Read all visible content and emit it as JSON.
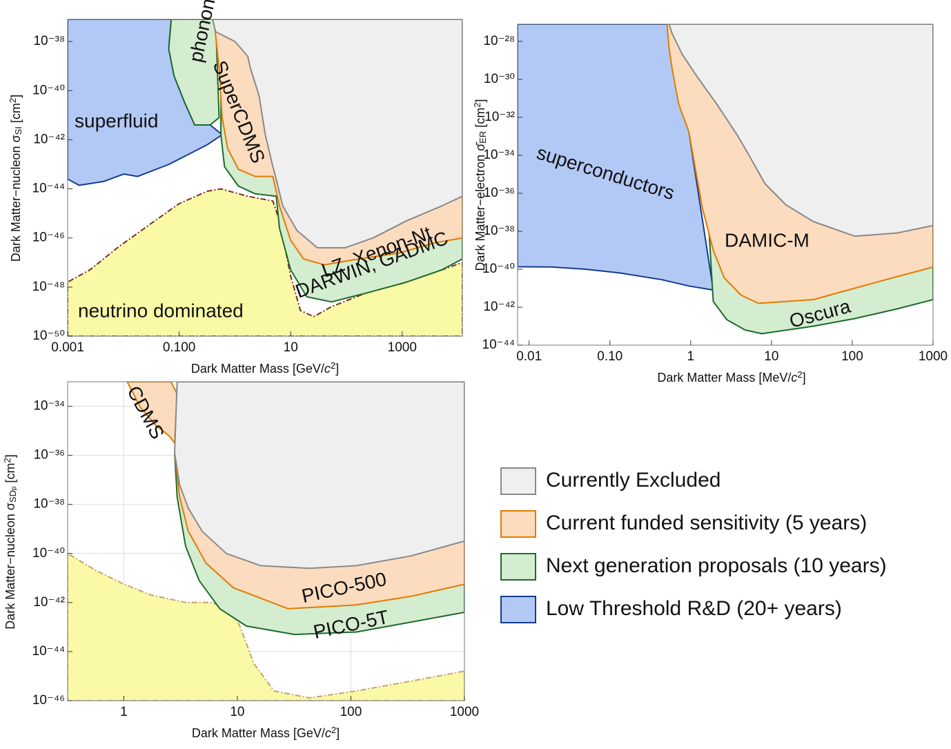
{
  "chart_data": [
    {
      "type": "region",
      "xlabel": [
        "Dark Matter Mass [GeV/",
        "c",
        "2",
        "]"
      ],
      "ylabel": [
        "Dark Matter−nucleon σ",
        "SI",
        " [cm",
        "2",
        "]"
      ],
      "log_x": true,
      "log_y": true,
      "grid": false,
      "xlim": [
        0.001,
        12000
      ],
      "ylim": [
        1e-50,
        8e-38
      ],
      "xticks": [
        0.001,
        {
          "value": 0.1,
          "label": "0.100"
        },
        10,
        1000
      ],
      "yticks": [
        {
          "value": 1e-38,
          "label": "10⁻³⁸"
        },
        {
          "value": 1e-40,
          "label": "10⁻⁴⁰"
        },
        {
          "value": 1e-42,
          "label": "10⁻⁴²"
        },
        {
          "value": 1e-44,
          "label": "10⁻⁴⁴"
        },
        {
          "value": 1e-46,
          "label": "10⁻⁴⁶"
        },
        {
          "value": 1e-48,
          "label": "10⁻⁴⁸"
        },
        {
          "value": 1e-50,
          "label": "10⁻⁵⁰"
        }
      ],
      "annotations": [
        "superfluid",
        "phonons",
        "SuperCDMS",
        "LZ, Xenon-Nt",
        "DARWIN, GADMC",
        "neutrino dominated"
      ],
      "series": [
        {
          "color": "#f9f9a6",
          "edge": "#7a2a2a",
          "dash": true,
          "x": [
            0.001,
            0.001,
            0.0025,
            0.0078,
            0.032,
            0.1,
            0.32,
            0.56,
            1.7,
            4.8,
            6.3,
            10,
            15,
            26,
            54,
            220,
            1200,
            5100,
            12000,
            12000
          ],
          "y": [
            1e-50,
            1.6e-48,
            5e-48,
            4e-47,
            4e-46,
            2.5e-45,
            8e-45,
            1e-44,
            5e-45,
            3.2e-45,
            5e-46,
            2.8e-48,
            1.1e-49,
            6.3e-50,
            1.6e-49,
            5.6e-49,
            1.6e-48,
            5e-48,
            1e-47,
            1e-50
          ]
        },
        {
          "color": "#b3c9f5",
          "edge": "#123c8c",
          "x": [
            0.001,
            0.072,
            0.065,
            0.081,
            0.126,
            0.19,
            0.36,
            0.59,
            0.32,
            0.066,
            0.018,
            0.0102,
            0.0044,
            0.0016,
            0.001
          ],
          "y": [
            8e-38,
            8e-38,
            5e-39,
            4e-40,
            3.2e-41,
            4e-42,
            4e-42,
            1.6e-42,
            6.3e-43,
            1e-43,
            3.2e-44,
            4e-44,
            2e-44,
            1.4e-44,
            2.5e-44
          ]
        },
        {
          "color": "#d4ecd0",
          "edge": "#1c6b2a",
          "x": [
            0.072,
            0.065,
            0.081,
            0.126,
            0.19,
            0.36,
            0.52,
            0.45
          ],
          "y": [
            8e-38,
            5e-39,
            4e-40,
            3.2e-41,
            4e-42,
            4e-42,
            8e-42,
            8e-38
          ]
        },
        {
          "color": "#d4ecd0",
          "edge": "#1c6b2a",
          "x": [
            0.56,
            0.56,
            0.65,
            1.15,
            2.3,
            5.5,
            6.3,
            10,
            19.5,
            54,
            220,
            1200,
            5100,
            12000,
            12000
          ],
          "y": [
            8e-38,
            1.6e-42,
            8e-44,
            1.3e-44,
            6.3e-45,
            5e-45,
            2.5e-46,
            5e-48,
            4e-49,
            2.5e-49,
            5.6e-49,
            1.6e-48,
            5e-48,
            1.4e-47,
            8e-38
          ]
        },
        {
          "color": "#fcdcbf",
          "edge": "#e07b00",
          "x": [
            0.42,
            0.52,
            0.59,
            0.74,
            1.15,
            2.3,
            4.8,
            6.3,
            10,
            17,
            40,
            165,
            930,
            3800,
            12000,
            12000
          ],
          "y": [
            8e-38,
            8e-40,
            8e-42,
            4.5e-43,
            6.3e-44,
            3.2e-44,
            3.2e-44,
            2e-45,
            8e-47,
            1.4e-47,
            8e-48,
            1.4e-47,
            2.5e-47,
            6.3e-47,
            1e-46,
            8e-38
          ]
        },
        {
          "color": "#efefef",
          "edge": "#888888",
          "x": [
            0.4,
            0.45,
            1,
            1.7,
            1.9,
            2.7,
            3.5,
            4.8,
            5.5,
            7.2,
            13,
            30,
            95,
            300,
            1200,
            5100,
            12000,
            12000
          ],
          "y": [
            8e-38,
            2.5e-38,
            1e-38,
            2.5e-39,
            8e-40,
            6.3e-41,
            1.6e-42,
            8e-44,
            2.5e-44,
            2e-45,
            2e-46,
            4e-47,
            4e-47,
            1e-46,
            5e-46,
            2e-45,
            5e-45,
            8e-38
          ]
        }
      ]
    },
    {
      "type": "region",
      "xlabel": [
        "Dark Matter Mass [MeV/",
        "c",
        "2",
        "]"
      ],
      "ylabel": [
        "Dark Matter−electron σ̄",
        "ER",
        " [cm",
        "2",
        "]"
      ],
      "log_x": true,
      "log_y": true,
      "grid": false,
      "xlim": [
        0.0072,
        1000
      ],
      "ylim": [
        1e-44,
        8e-28
      ],
      "xticks": [
        0.01,
        {
          "value": 0.1,
          "label": "0.10"
        },
        1,
        10,
        100,
        1000
      ],
      "yticks": [
        {
          "value": 1e-28,
          "label": "10⁻²⁸"
        },
        {
          "value": 1e-30,
          "label": "10⁻³⁰"
        },
        {
          "value": 1e-32,
          "label": "10⁻³²"
        },
        {
          "value": 1e-34,
          "label": "10⁻³⁴"
        },
        {
          "value": 1e-36,
          "label": "10⁻³⁶"
        },
        {
          "value": 1e-38,
          "label": "10⁻³⁸"
        },
        {
          "value": 1e-40,
          "label": "10⁻⁴⁰"
        },
        {
          "value": 1e-42,
          "label": "10⁻⁴²"
        },
        {
          "value": 1e-44,
          "label": "10⁻⁴⁴"
        }
      ],
      "annotations": [
        "superconductors",
        "DAMIC-M",
        "Oscura"
      ],
      "series": [
        {
          "color": "#b3c9f5",
          "edge": "#123c8c",
          "x": [
            0.0072,
            0.51,
            0.95,
            1.9,
            0.95,
            0.44,
            0.135,
            0.05,
            0.019,
            0.0072
          ],
          "y": [
            8e-28,
            8e-28,
            1.7e-33,
            8e-42,
            1.3e-41,
            2.8e-41,
            6.3e-41,
            1e-40,
            1.3e-40,
            1.35e-40
          ]
        },
        {
          "color": "#d4ecd0",
          "edge": "#1c6b2a",
          "x": [
            0.95,
            1.3,
            1.7,
            1.9,
            2.8,
            4.7,
            7.6,
            33,
            107,
            355,
            1000,
            1000,
            0.95
          ],
          "y": [
            1.7e-33,
            5e-36,
            5.5e-39,
            2e-42,
            2.2e-43,
            6.3e-44,
            4e-44,
            1e-43,
            2.5e-43,
            8e-43,
            2.5e-42,
            8e-28,
            8e-28
          ]
        },
        {
          "color": "#fcdcbf",
          "edge": "#e07b00",
          "x": [
            0.51,
            0.54,
            0.59,
            0.71,
            0.95,
            1.17,
            1.4,
            1.9,
            2.6,
            4.2,
            6.9,
            33,
            107,
            355,
            1000,
            1000
          ],
          "y": [
            8e-28,
            4.3e-29,
            3.4e-30,
            5e-32,
            1.7e-33,
            1.1e-35,
            1.6e-37,
            1e-39,
            3.5e-41,
            4.3e-42,
            1.6e-42,
            2.5e-42,
            1e-41,
            4e-41,
            1.3e-40,
            8e-28
          ]
        },
        {
          "color": "#efefef",
          "edge": "#888888",
          "x": [
            0.54,
            0.59,
            0.79,
            1.17,
            2.1,
            3.8,
            5.6,
            8.3,
            15,
            33,
            107,
            355,
            1000,
            1000
          ],
          "y": [
            8e-28,
            2.5e-28,
            2e-29,
            1.6e-30,
            5e-32,
            1.1e-33,
            6.3e-35,
            3.2e-36,
            2.5e-37,
            3.2e-38,
            5.5e-39,
            8e-39,
            2e-38,
            8e-28
          ]
        }
      ]
    },
    {
      "type": "region",
      "xlabel": [
        "Dark Matter Mass [GeV/",
        "c",
        "2",
        "]"
      ],
      "ylabel": [
        "Dark Matter−nucleon σ",
        "SD",
        "p",
        " [cm",
        "2",
        "]"
      ],
      "log_x": true,
      "log_y": true,
      "grid": true,
      "xlim": [
        0.32,
        1000
      ],
      "ylim": [
        1e-46,
        1e-33
      ],
      "xticks": [
        1,
        10,
        100,
        1000
      ],
      "yticks": [
        {
          "value": 1e-34,
          "label": "10⁻³⁴"
        },
        {
          "value": 1e-36,
          "label": "10⁻³⁶"
        },
        {
          "value": 1e-38,
          "label": "10⁻³⁸"
        },
        {
          "value": 1e-40,
          "label": "10⁻⁴⁰"
        },
        {
          "value": 1e-42,
          "label": "10⁻⁴²"
        },
        {
          "value": 1e-44,
          "label": "10⁻⁴⁴"
        },
        {
          "value": 1e-46,
          "label": "10⁻⁴⁶"
        }
      ],
      "annotations": [
        "CDMS",
        "PICO-500",
        "PICO-5T"
      ],
      "series": [
        {
          "color": "#f9f9a6",
          "edge": "#c8a070",
          "dash": true,
          "x": [
            0.32,
            0.32,
            1000,
            1000,
            340,
            112,
            43,
            21,
            14,
            10.5,
            9.2,
            6,
            3.5,
            1.75,
            1,
            0.57
          ],
          "y": [
            1e-40,
            1e-46,
            1e-46,
            1.6e-45,
            6.3e-46,
            2.5e-46,
            1.3e-46,
            2.5e-46,
            3.2e-45,
            1.1e-43,
            4e-43,
            1e-42,
            1e-42,
            2e-42,
            5.6e-42,
            2e-41
          ]
        },
        {
          "color": "#d4ecd0",
          "edge": "#1c6b2a",
          "x": [
            2.8,
            2.95,
            3.5,
            4.6,
            7,
            12,
            32,
            112,
            340,
            1000,
            1000
          ],
          "y": [
            1.3e-36,
            2e-38,
            2e-40,
            8e-42,
            5.6e-43,
            1.1e-43,
            5e-44,
            6.3e-44,
            1.6e-43,
            4e-43,
            1e-33
          ]
        },
        {
          "color": "#fcdcbf",
          "edge": "#e07b00",
          "x": [
            2.8,
            3.1,
            3.7,
            5.3,
            9.2,
            28,
            112,
            340,
            1000,
            1000
          ],
          "y": [
            1.3e-36,
            2e-38,
            8e-40,
            4e-41,
            4e-42,
            5.6e-43,
            8e-43,
            1.8e-42,
            5.6e-42,
            1e-33
          ]
        },
        {
          "color": "#fcdcbf",
          "edge": "#e07b00",
          "x": [
            1.07,
            1.4,
            1.9,
            2.5,
            2.8,
            2.95,
            2.6
          ],
          "y": [
            1e-33,
            9e-35,
            1.7e-35,
            6.3e-36,
            3.2e-36,
            3.2e-34,
            1e-33
          ]
        },
        {
          "color": "#efefef",
          "edge": "#888888",
          "x": [
            2.95,
            2.8,
            3.1,
            3.7,
            4.9,
            8,
            16,
            43,
            112,
            340,
            1000,
            1000
          ],
          "y": [
            1e-33,
            1.3e-36,
            6.3e-38,
            7e-39,
            8e-40,
            1e-40,
            3.2e-41,
            2.5e-41,
            3.2e-41,
            8e-41,
            3.2e-40,
            1e-33
          ]
        }
      ]
    }
  ],
  "legend": [
    {
      "label": "Currently Excluded",
      "color": "#efefef",
      "edge": "#888888"
    },
    {
      "label": "Current funded sensitivity (5 years)",
      "color": "#fcdcbf",
      "edge": "#e07b00"
    },
    {
      "label": "Next generation proposals (10 years)",
      "color": "#d4ecd0",
      "edge": "#1c6b2a"
    },
    {
      "label": "Low Threshold R&D (20+ years)",
      "color": "#b3c9f5",
      "edge": "#123c8c"
    }
  ]
}
